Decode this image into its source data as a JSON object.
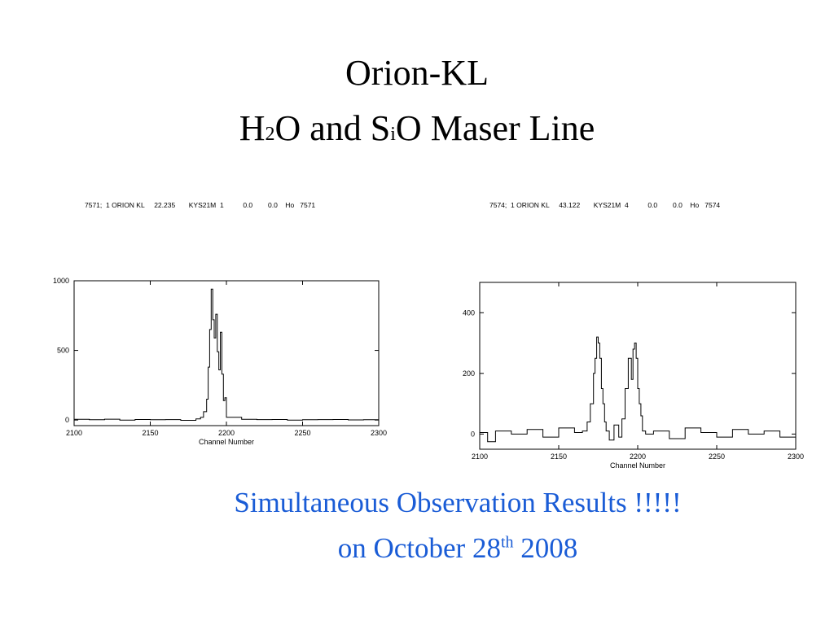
{
  "slide": {
    "title_line1": "Orion-KL",
    "title_line2": {
      "p1": "H",
      "sub1": "2",
      "p2": "O and S",
      "sub2": "i",
      "p3": "O Maser Line"
    },
    "caption_line1": "Simultaneous Observation Results !!!!!",
    "caption_line2": {
      "pre": "on October 28",
      "sup": "th",
      "post": " 2008"
    },
    "caption_color": "#1a5cd6"
  },
  "chart_data": [
    {
      "type": "line",
      "header": "7571;  1 ORION KL     22.235       KYS21M  1          0.0        0.0    Ho   7571",
      "xlabel": "Channel Number",
      "xlim": [
        2100,
        2300
      ],
      "ylim": [
        -40,
        1000
      ],
      "xticks": [
        "2100",
        "2150",
        "2200",
        "2250",
        "2300"
      ],
      "yticks": [
        "0",
        "500",
        "1000"
      ],
      "x": [
        2100,
        2110,
        2120,
        2130,
        2140,
        2150,
        2160,
        2170,
        2180,
        2183,
        2185,
        2187,
        2188,
        2189,
        2190,
        2191,
        2192,
        2193,
        2194,
        2195,
        2196,
        2197,
        2198,
        2199,
        2200,
        2210,
        2220,
        2230,
        2240,
        2250,
        2260,
        2270,
        2280,
        2290,
        2300
      ],
      "y": [
        5,
        2,
        6,
        0,
        4,
        2,
        3,
        -2,
        8,
        20,
        60,
        150,
        380,
        650,
        940,
        720,
        590,
        760,
        490,
        360,
        630,
        330,
        140,
        160,
        20,
        5,
        3,
        4,
        0,
        2,
        3,
        4,
        1,
        2,
        3
      ]
    },
    {
      "type": "line",
      "header": "7574;  1 ORION KL     43.122       KYS21M  4          0.0        0.0    Ho   7574",
      "xlabel": "Channel Number",
      "xlim": [
        2100,
        2300
      ],
      "ylim": [
        -50,
        500
      ],
      "xticks": [
        "2100",
        "2150",
        "2200",
        "2250",
        "2300"
      ],
      "yticks": [
        "0",
        "200",
        "400"
      ],
      "x": [
        2100,
        2105,
        2110,
        2120,
        2130,
        2140,
        2150,
        2160,
        2165,
        2168,
        2170,
        2172,
        2173,
        2174,
        2175,
        2176,
        2177,
        2178,
        2179,
        2180,
        2182,
        2185,
        2188,
        2190,
        2192,
        2194,
        2196,
        2197,
        2198,
        2199,
        2200,
        2201,
        2202,
        2203,
        2205,
        2210,
        2220,
        2230,
        2240,
        2250,
        2260,
        2270,
        2280,
        2290,
        2300
      ],
      "y": [
        5,
        -25,
        10,
        0,
        15,
        -10,
        20,
        5,
        10,
        40,
        100,
        200,
        250,
        320,
        300,
        250,
        150,
        100,
        40,
        10,
        -20,
        30,
        -10,
        50,
        150,
        250,
        180,
        280,
        300,
        250,
        150,
        100,
        60,
        10,
        0,
        10,
        -15,
        20,
        5,
        -10,
        15,
        0,
        10,
        -10,
        5
      ]
    }
  ]
}
